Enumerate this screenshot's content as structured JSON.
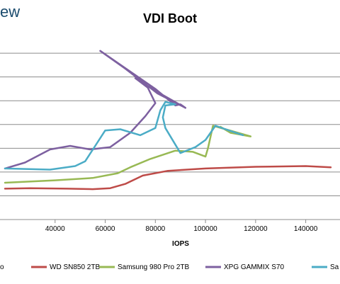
{
  "brand": {
    "text": "ew"
  },
  "chart_data": {
    "type": "line",
    "title": "VDI Boot",
    "xlabel": "IOPS",
    "ylabel": "",
    "xlim": [
      20000,
      150000
    ],
    "ylim": [
      0,
      7.6
    ],
    "x_ticks": [
      40000,
      60000,
      80000,
      100000,
      120000,
      140000
    ],
    "x_tick_labels": [
      "40000",
      "60000",
      "80000",
      "100000",
      "120000",
      "140000"
    ],
    "y_gridlines": [
      1,
      2,
      3,
      4,
      5,
      6,
      7
    ],
    "grid": true,
    "legend_position": "bottom",
    "series": [
      {
        "name": "",
        "legend_label": "o",
        "color": "#4a7ebb",
        "points": []
      },
      {
        "name": "WD SN850 2TB",
        "color": "#be4b48",
        "points": [
          [
            20000,
            1.3
          ],
          [
            30000,
            1.32
          ],
          [
            45000,
            1.3
          ],
          [
            55000,
            1.28
          ],
          [
            62000,
            1.32
          ],
          [
            68000,
            1.5
          ],
          [
            75000,
            1.85
          ],
          [
            85000,
            2.05
          ],
          [
            100000,
            2.15
          ],
          [
            120000,
            2.22
          ],
          [
            140000,
            2.25
          ],
          [
            150000,
            2.2
          ]
        ]
      },
      {
        "name": "Samsung 980 Pro 2TB",
        "color": "#98b954",
        "points": [
          [
            20000,
            1.55
          ],
          [
            40000,
            1.65
          ],
          [
            55000,
            1.75
          ],
          [
            65000,
            1.95
          ],
          [
            70000,
            2.2
          ],
          [
            78000,
            2.55
          ],
          [
            88000,
            2.9
          ],
          [
            95000,
            2.85
          ],
          [
            100000,
            2.65
          ],
          [
            101000,
            3.0
          ],
          [
            103000,
            3.95
          ],
          [
            108000,
            3.8
          ],
          [
            118000,
            3.5
          ],
          [
            110000,
            3.65
          ],
          [
            106000,
            3.9
          ]
        ]
      },
      {
        "name": "XPG GAMMIX S70",
        "color": "#7d60a0",
        "points": [
          [
            20000,
            2.15
          ],
          [
            28000,
            2.4
          ],
          [
            38000,
            2.95
          ],
          [
            46000,
            3.1
          ],
          [
            54000,
            2.95
          ],
          [
            62000,
            3.05
          ],
          [
            70000,
            3.65
          ],
          [
            76000,
            4.35
          ],
          [
            80000,
            4.9
          ],
          [
            77000,
            5.55
          ],
          [
            72000,
            5.95
          ],
          [
            82000,
            5.3
          ],
          [
            92000,
            4.7
          ],
          [
            81000,
            5.3
          ],
          [
            68000,
            6.35
          ],
          [
            58000,
            7.1
          ],
          [
            80000,
            5.5
          ],
          [
            88000,
            4.8
          ],
          [
            90000,
            4.85
          ],
          [
            92000,
            4.7
          ]
        ]
      },
      {
        "name": "Sa",
        "color": "#4bacc6",
        "points": [
          [
            20000,
            2.15
          ],
          [
            38000,
            2.1
          ],
          [
            48000,
            2.25
          ],
          [
            52000,
            2.45
          ],
          [
            56000,
            3.1
          ],
          [
            60000,
            3.75
          ],
          [
            66000,
            3.8
          ],
          [
            74000,
            3.55
          ],
          [
            80000,
            3.85
          ],
          [
            82000,
            4.6
          ],
          [
            84000,
            4.95
          ],
          [
            88000,
            4.85
          ],
          [
            84000,
            4.8
          ],
          [
            83000,
            4.3
          ],
          [
            84000,
            3.85
          ],
          [
            90000,
            2.8
          ],
          [
            96000,
            3.05
          ],
          [
            100000,
            3.35
          ],
          [
            104000,
            3.95
          ],
          [
            108000,
            3.8
          ],
          [
            115000,
            3.55
          ]
        ]
      }
    ]
  }
}
